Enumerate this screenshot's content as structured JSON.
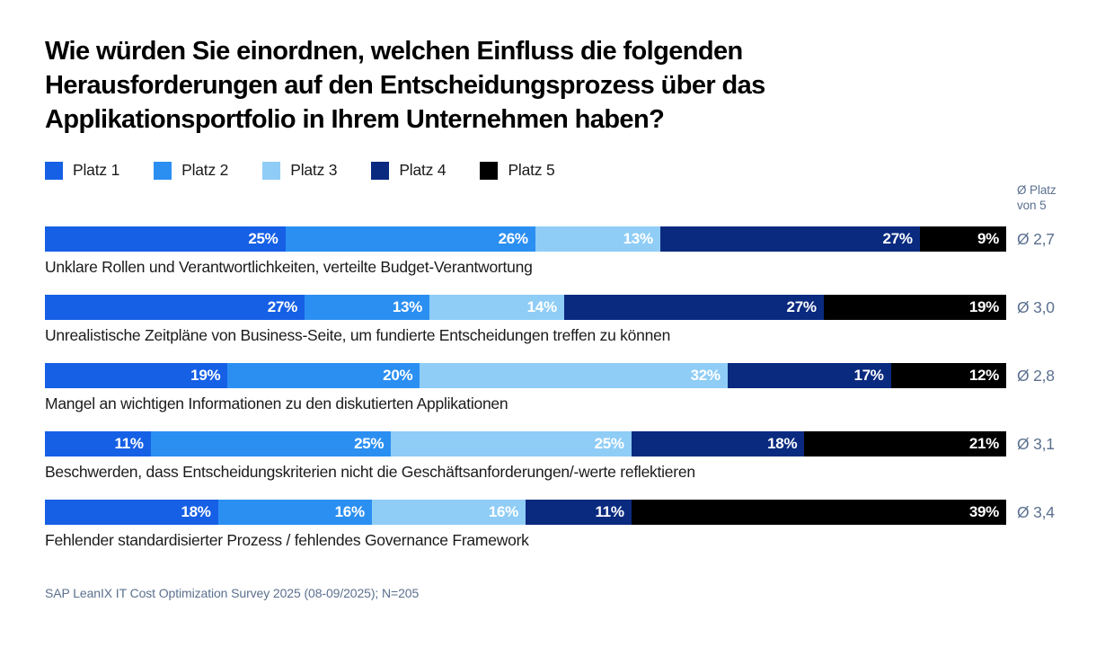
{
  "title": "Wie würden Sie einordnen, welchen Einfluss die folgenden Herausforderungen auf den Entscheidungsprozess über das Applikationsportfolio in Ihrem Unternehmen haben?",
  "legend": {
    "items": [
      {
        "label": "Platz 1",
        "color": "#1660e6"
      },
      {
        "label": "Platz 2",
        "color": "#2b8ff2"
      },
      {
        "label": "Platz 3",
        "color": "#8fcdf6"
      },
      {
        "label": "Platz 4",
        "color": "#0a2a80"
      },
      {
        "label": "Platz 5",
        "color": "#000000"
      }
    ]
  },
  "avg_header": {
    "line1": "Ø Platz",
    "line2": "von 5"
  },
  "footer": "SAP LeanIX IT Cost Optimization Survey 2025 (08-09/2025); N=205",
  "colors": {
    "title_text": "#000000",
    "row_label_text": "#1b1b1b",
    "muted_text": "#5b708f",
    "segment_value_text": "#ffffff"
  },
  "chart_data": {
    "type": "bar",
    "variant": "horizontal-stacked",
    "unit": "%",
    "xlim": [
      0,
      100
    ],
    "grid": false,
    "legend_position": "top",
    "series_names": [
      "Platz 1",
      "Platz 2",
      "Platz 3",
      "Platz 4",
      "Platz 5"
    ],
    "series_colors": [
      "#1660e6",
      "#2b8ff2",
      "#8fcdf6",
      "#0a2a80",
      "#000000"
    ],
    "categories": [
      "Unklare Rollen und Verantwortlichkeiten, verteilte Budget-Verantwortung",
      "Unrealistische Zeitpläne von Business-Seite, um fundierte Entscheidungen treffen zu können",
      "Mangel an wichtigen Informationen zu den diskutierten Applikationen",
      "Beschwerden, dass Entscheidungskriterien nicht die Geschäftsanforderungen/-werte reflektieren",
      "Fehlender standardisierter Prozess / fehlendes Governance Framework"
    ],
    "rows": [
      {
        "label": "Unklare Rollen und Verantwortlichkeiten, verteilte Budget-Verantwortung",
        "values": [
          25,
          26,
          13,
          27,
          9
        ],
        "avg": 2.7,
        "avg_label": "Ø 2,7"
      },
      {
        "label": "Unrealistische Zeitpläne von Business-Seite, um fundierte Entscheidungen treffen zu können",
        "values": [
          27,
          13,
          14,
          27,
          19
        ],
        "avg": 3.0,
        "avg_label": "Ø 3,0"
      },
      {
        "label": "Mangel an wichtigen Informationen zu den diskutierten Applikationen",
        "values": [
          19,
          20,
          32,
          17,
          12
        ],
        "avg": 2.8,
        "avg_label": "Ø 2,8"
      },
      {
        "label": "Beschwerden, dass Entscheidungskriterien nicht die Geschäftsanforderungen/-werte reflektieren",
        "values": [
          11,
          25,
          25,
          18,
          21
        ],
        "avg": 3.1,
        "avg_label": "Ø 3,1"
      },
      {
        "label": "Fehlender standardisierter Prozess / fehlendes Governance Framework",
        "values": [
          18,
          16,
          16,
          11,
          39
        ],
        "avg": 3.4,
        "avg_label": "Ø 3,4"
      }
    ]
  }
}
